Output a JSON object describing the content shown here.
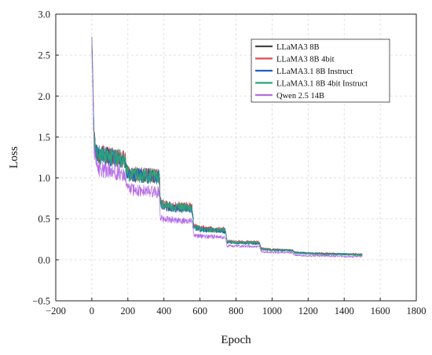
{
  "chart_data": {
    "type": "line",
    "title": "",
    "xlabel": "Epoch",
    "ylabel": "Loss",
    "xlim": [
      -200,
      1800
    ],
    "ylim": [
      -0.5,
      3.0
    ],
    "xticks": [
      -200,
      0,
      200,
      400,
      600,
      800,
      1000,
      1200,
      1400,
      1600,
      1800
    ],
    "yticks": [
      -0.5,
      0.0,
      0.5,
      1.0,
      1.5,
      2.0,
      2.5,
      3.0
    ],
    "xtick_labels": [
      "−200",
      "0",
      "200",
      "400",
      "600",
      "800",
      "1000",
      "1200",
      "1400",
      "1600",
      "1800"
    ],
    "ytick_labels": [
      "−0.5",
      "0.0",
      "0.5",
      "1.0",
      "1.5",
      "2.0",
      "2.5",
      "3.0"
    ],
    "grid": true,
    "legend_position": "top-right",
    "x": [
      0,
      5,
      10,
      15,
      20,
      30,
      50,
      100,
      150,
      185,
      190,
      200,
      300,
      370,
      375,
      380,
      400,
      500,
      555,
      560,
      565,
      600,
      700,
      740,
      745,
      750,
      800,
      900,
      930,
      935,
      940,
      1000,
      1100,
      1115,
      1120,
      1125,
      1200,
      1300,
      1400,
      1500
    ],
    "series": [
      {
        "name": "LLaMA3 8B",
        "color": "#444444",
        "values": [
          2.7,
          2.3,
          1.7,
          1.45,
          1.35,
          1.3,
          1.28,
          1.26,
          1.24,
          1.22,
          1.1,
          1.05,
          1.03,
          1.02,
          1.0,
          0.7,
          0.66,
          0.64,
          0.63,
          0.55,
          0.4,
          0.38,
          0.36,
          0.36,
          0.3,
          0.22,
          0.21,
          0.21,
          0.2,
          0.16,
          0.13,
          0.12,
          0.12,
          0.11,
          0.1,
          0.09,
          0.08,
          0.07,
          0.07,
          0.06
        ]
      },
      {
        "name": "LLaMA3 8B 4bit",
        "color": "#e0484d",
        "values": [
          2.72,
          2.32,
          1.72,
          1.46,
          1.36,
          1.31,
          1.29,
          1.27,
          1.25,
          1.23,
          1.11,
          1.06,
          1.04,
          1.03,
          1.01,
          0.71,
          0.67,
          0.65,
          0.64,
          0.56,
          0.41,
          0.39,
          0.37,
          0.37,
          0.31,
          0.23,
          0.22,
          0.22,
          0.21,
          0.17,
          0.14,
          0.13,
          0.12,
          0.12,
          0.1,
          0.09,
          0.08,
          0.08,
          0.07,
          0.07
        ]
      },
      {
        "name": "LLaMA3.1 8B Instruct",
        "color": "#1f5fbf",
        "values": [
          2.68,
          2.28,
          1.68,
          1.44,
          1.34,
          1.3,
          1.28,
          1.25,
          1.23,
          1.21,
          1.1,
          1.04,
          1.02,
          1.01,
          0.99,
          0.69,
          0.65,
          0.63,
          0.62,
          0.54,
          0.4,
          0.37,
          0.36,
          0.35,
          0.3,
          0.22,
          0.21,
          0.2,
          0.2,
          0.16,
          0.13,
          0.12,
          0.11,
          0.11,
          0.1,
          0.09,
          0.08,
          0.07,
          0.07,
          0.06
        ]
      },
      {
        "name": "LLaMA3.1 8B 4bit Instruct",
        "color": "#2aa67a",
        "values": [
          2.69,
          2.29,
          1.69,
          1.44,
          1.35,
          1.3,
          1.28,
          1.26,
          1.24,
          1.22,
          1.1,
          1.05,
          1.03,
          1.02,
          1.0,
          0.7,
          0.66,
          0.64,
          0.63,
          0.55,
          0.4,
          0.38,
          0.36,
          0.36,
          0.3,
          0.22,
          0.21,
          0.21,
          0.2,
          0.16,
          0.13,
          0.12,
          0.12,
          0.11,
          0.1,
          0.09,
          0.08,
          0.07,
          0.07,
          0.06
        ]
      },
      {
        "name": "Qwen 2.5 14B",
        "color": "#b36be6",
        "values": [
          2.65,
          2.2,
          1.55,
          1.3,
          1.18,
          1.12,
          1.1,
          1.08,
          1.06,
          1.04,
          0.92,
          0.86,
          0.84,
          0.83,
          0.82,
          0.52,
          0.5,
          0.48,
          0.47,
          0.42,
          0.3,
          0.29,
          0.28,
          0.27,
          0.24,
          0.17,
          0.17,
          0.16,
          0.16,
          0.12,
          0.1,
          0.09,
          0.09,
          0.08,
          0.07,
          0.06,
          0.05,
          0.05,
          0.04,
          0.04
        ]
      }
    ]
  }
}
